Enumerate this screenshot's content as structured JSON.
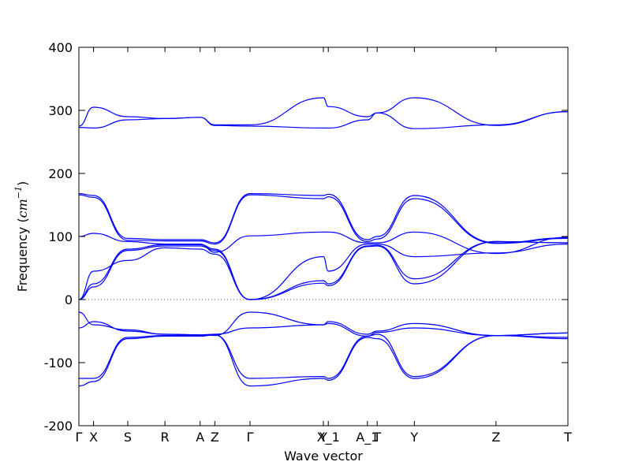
{
  "chart_data": {
    "type": "line",
    "xlabel": "Wave vector",
    "ylabel": {
      "prefix": "Frequency (",
      "unit_base": "cm",
      "unit_exp": "−1",
      "suffix": ")"
    },
    "ylim": [
      -200,
      400
    ],
    "yticks": [
      400,
      300,
      200,
      100,
      0,
      -100,
      -200
    ],
    "zero_line": true,
    "line_color": "#0000ff",
    "high_symmetry_points": [
      {
        "label": "Γ",
        "x": 0
      },
      {
        "label": "X",
        "x": 0.03
      },
      {
        "label": "S",
        "x": 0.1
      },
      {
        "label": "R",
        "x": 0.176
      },
      {
        "label": "A",
        "x": 0.248
      },
      {
        "label": "Z",
        "x": 0.278
      },
      {
        "label": "Γ",
        "x": 0.35
      },
      {
        "label": "Y",
        "x": 0.5
      },
      {
        "label": "X_1",
        "x": 0.51
      },
      {
        "label": "A_1",
        "x": 0.59
      },
      {
        "label": "T",
        "x": 0.61
      },
      {
        "label": "Y",
        "x": 0.686
      },
      {
        "label": "Z",
        "x": 0.853
      },
      {
        "label": "T",
        "x": 1.0
      }
    ],
    "series": [
      {
        "x": [
          0,
          0.03,
          0.1,
          0.176,
          0.248,
          0.278,
          0.35,
          0.5,
          0.51,
          0.59,
          0.61,
          0.686,
          0.853,
          1.0
        ],
        "values": [
          275,
          305,
          290,
          287,
          289,
          277,
          277,
          320,
          306,
          290,
          296,
          320,
          276,
          298
        ]
      },
      {
        "x": [
          0,
          0.03,
          0.1,
          0.176,
          0.248,
          0.278,
          0.35,
          0.5,
          0.51,
          0.59,
          0.61,
          0.686,
          0.853,
          1.0
        ],
        "values": [
          273,
          272,
          285,
          287,
          289,
          276,
          275,
          272,
          272,
          285,
          296,
          271,
          277,
          298
        ]
      },
      {
        "x": [
          0,
          0.03,
          0.1,
          0.176,
          0.248,
          0.278,
          0.35,
          0.5,
          0.51,
          0.59,
          0.61,
          0.686,
          0.853,
          1.0
        ],
        "values": [
          168,
          165,
          97,
          95,
          95,
          90,
          168,
          165,
          167,
          95,
          100,
          165,
          90,
          98
        ]
      },
      {
        "x": [
          0,
          0.03,
          0.1,
          0.176,
          0.248,
          0.278,
          0.35,
          0.5,
          0.51,
          0.59,
          0.61,
          0.686,
          0.853,
          1.0
        ],
        "values": [
          166,
          162,
          94,
          93,
          93,
          88,
          166,
          160,
          163,
          92,
          96,
          160,
          89,
          97
        ]
      },
      {
        "x": [
          0,
          0.03,
          0.1,
          0.176,
          0.248,
          0.278,
          0.35,
          0.5,
          0.51,
          0.59,
          0.61,
          0.686,
          0.853,
          1.0
        ],
        "values": [
          100,
          105,
          92,
          88,
          88,
          75,
          101,
          107,
          107,
          90,
          90,
          107,
          73,
          99
        ]
      },
      {
        "x": [
          0,
          0.03,
          0.1,
          0.176,
          0.248,
          0.278,
          0.35,
          0.5,
          0.51,
          0.59,
          0.61,
          0.686,
          0.853,
          1.0
        ],
        "values": [
          0,
          45,
          62,
          82,
          80,
          72,
          0,
          68,
          45,
          88,
          88,
          68,
          74,
          88
        ]
      },
      {
        "x": [
          0,
          0.03,
          0.1,
          0.176,
          0.248,
          0.278,
          0.35,
          0.5,
          0.51,
          0.59,
          0.61,
          0.686,
          0.853,
          1.0
        ],
        "values": [
          0,
          25,
          80,
          87,
          87,
          80,
          0,
          30,
          25,
          85,
          86,
          33,
          92,
          90
        ]
      },
      {
        "x": [
          0,
          0.03,
          0.1,
          0.176,
          0.248,
          0.278,
          0.35,
          0.5,
          0.51,
          0.59,
          0.61,
          0.686,
          0.853,
          1.0
        ],
        "values": [
          0,
          20,
          78,
          85,
          85,
          78,
          0,
          26,
          22,
          84,
          85,
          25,
          92,
          90
        ]
      },
      {
        "x": [
          0,
          0.03,
          0.1,
          0.176,
          0.248,
          0.278,
          0.35,
          0.5,
          0.51,
          0.59,
          0.61,
          0.686,
          0.853,
          1.0
        ],
        "values": [
          -20,
          -40,
          -48,
          -55,
          -56,
          -57,
          -20,
          -40,
          -35,
          -55,
          -50,
          -38,
          -57,
          -53
        ]
      },
      {
        "x": [
          0,
          0.03,
          0.1,
          0.176,
          0.248,
          0.278,
          0.35,
          0.5,
          0.51,
          0.59,
          0.61,
          0.686,
          0.853,
          1.0
        ],
        "values": [
          -45,
          -35,
          -50,
          -55,
          -56,
          -55,
          -45,
          -40,
          -38,
          -58,
          -52,
          -45,
          -57,
          -53
        ]
      },
      {
        "x": [
          0,
          0.03,
          0.1,
          0.176,
          0.248,
          0.278,
          0.35,
          0.5,
          0.51,
          0.59,
          0.61,
          0.686,
          0.853,
          1.0
        ],
        "values": [
          -125,
          -125,
          -60,
          -57,
          -57,
          -56,
          -125,
          -122,
          -125,
          -58,
          -55,
          -122,
          -57,
          -60
        ]
      },
      {
        "x": [
          0,
          0.03,
          0.1,
          0.176,
          0.248,
          0.278,
          0.35,
          0.5,
          0.51,
          0.59,
          0.61,
          0.686,
          0.853,
          1.0
        ],
        "values": [
          -137,
          -130,
          -62,
          -58,
          -58,
          -56,
          -137,
          -125,
          -128,
          -60,
          -62,
          -125,
          -57,
          -62
        ]
      }
    ]
  }
}
